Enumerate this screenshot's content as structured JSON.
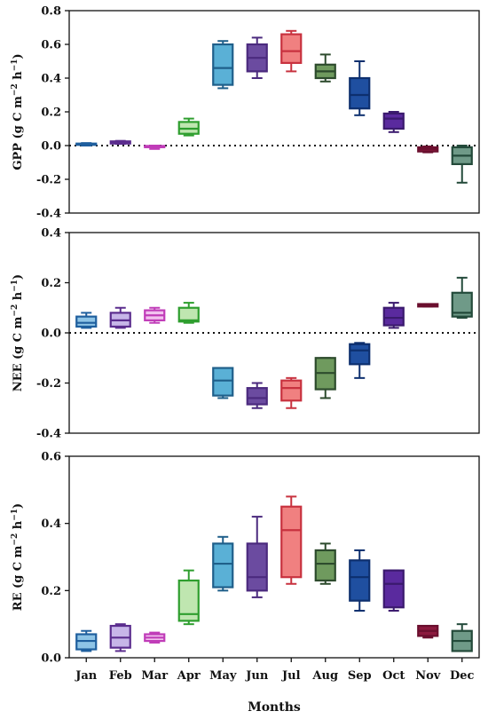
{
  "chart_data": {
    "type": "box",
    "categories": [
      "Jan",
      "Feb",
      "Mar",
      "Apr",
      "May",
      "Jun",
      "Jul",
      "Aug",
      "Sep",
      "Oct",
      "Nov",
      "Dec"
    ],
    "xlabel": "Months",
    "colors": {
      "edge": [
        "#1f5f9e",
        "#5b2d8e",
        "#c03cb8",
        "#2e9e2e",
        "#1f5f8a",
        "#4b2a7e",
        "#c8323f",
        "#2d4b2d",
        "#0d2f6e",
        "#3b1a6e",
        "#6a0f2e",
        "#234a3a"
      ],
      "fill": [
        "#8ec4e6",
        "#c7b6e8",
        "#f2c2ef",
        "#bfe6b0",
        "#5ab0d6",
        "#6b4ba0",
        "#f08080",
        "#6f9a5e",
        "#1f4fa0",
        "#5a2a9e",
        "#8c1a3e",
        "#6f9a88"
      ]
    },
    "panels": [
      {
        "ylabel_main": "GPP",
        "ylabel_unit": "(g C m",
        "ylabel_sup1": "−2",
        "ylabel_unit2": " h",
        "ylabel_sup2": "−1",
        "ylabel_close": ")",
        "ylim": [
          -0.4,
          0.8
        ],
        "yticks": [
          "-0.4",
          "-0.2",
          "0.0",
          "0.2",
          "0.4",
          "0.6",
          "0.8"
        ],
        "zero_line": true,
        "boxes": [
          {
            "min": 0.0,
            "q1": 0.005,
            "median": 0.008,
            "q3": 0.012,
            "max": 0.015
          },
          {
            "min": 0.01,
            "q1": 0.012,
            "median": 0.02,
            "q3": 0.025,
            "max": 0.028
          },
          {
            "min": -0.02,
            "q1": -0.008,
            "median": -0.005,
            "q3": -0.002,
            "max": 0.0
          },
          {
            "min": 0.06,
            "q1": 0.07,
            "median": 0.1,
            "q3": 0.14,
            "max": 0.16
          },
          {
            "min": 0.34,
            "q1": 0.36,
            "median": 0.46,
            "q3": 0.6,
            "max": 0.62
          },
          {
            "min": 0.4,
            "q1": 0.44,
            "median": 0.52,
            "q3": 0.6,
            "max": 0.64
          },
          {
            "min": 0.44,
            "q1": 0.49,
            "median": 0.56,
            "q3": 0.66,
            "max": 0.68
          },
          {
            "min": 0.38,
            "q1": 0.4,
            "median": 0.44,
            "q3": 0.48,
            "max": 0.54
          },
          {
            "min": 0.18,
            "q1": 0.22,
            "median": 0.3,
            "q3": 0.4,
            "max": 0.5
          },
          {
            "min": 0.08,
            "q1": 0.1,
            "median": 0.16,
            "q3": 0.19,
            "max": 0.2
          },
          {
            "min": -0.04,
            "q1": -0.035,
            "median": -0.02,
            "q3": -0.01,
            "max": -0.005
          },
          {
            "min": -0.22,
            "q1": -0.11,
            "median": -0.06,
            "q3": -0.01,
            "max": 0.0
          }
        ]
      },
      {
        "ylabel_main": "NEE",
        "ylabel_unit": "(g C m",
        "ylabel_sup1": "−2",
        "ylabel_unit2": " h",
        "ylabel_sup2": "−1",
        "ylabel_close": ")",
        "ylim": [
          -0.4,
          0.4
        ],
        "yticks": [
          "-0.4",
          "-0.2",
          "0.0",
          "0.2",
          "0.4"
        ],
        "zero_line": true,
        "boxes": [
          {
            "min": 0.02,
            "q1": 0.025,
            "median": 0.04,
            "q3": 0.065,
            "max": 0.08
          },
          {
            "min": 0.02,
            "q1": 0.025,
            "median": 0.05,
            "q3": 0.08,
            "max": 0.1
          },
          {
            "min": 0.04,
            "q1": 0.05,
            "median": 0.07,
            "q3": 0.09,
            "max": 0.1
          },
          {
            "min": 0.04,
            "q1": 0.045,
            "median": 0.05,
            "q3": 0.1,
            "max": 0.12
          },
          {
            "min": -0.26,
            "q1": -0.25,
            "median": -0.19,
            "q3": -0.14,
            "max": -0.14
          },
          {
            "min": -0.3,
            "q1": -0.285,
            "median": -0.26,
            "q3": -0.22,
            "max": -0.2
          },
          {
            "min": -0.3,
            "q1": -0.27,
            "median": -0.22,
            "q3": -0.19,
            "max": -0.18
          },
          {
            "min": -0.26,
            "q1": -0.225,
            "median": -0.16,
            "q3": -0.1,
            "max": -0.1
          },
          {
            "min": -0.18,
            "q1": -0.125,
            "median": -0.07,
            "q3": -0.045,
            "max": -0.04
          },
          {
            "min": 0.02,
            "q1": 0.03,
            "median": 0.06,
            "q3": 0.1,
            "max": 0.12
          },
          {
            "min": 0.105,
            "q1": 0.105,
            "median": 0.11,
            "q3": 0.115,
            "max": 0.115
          },
          {
            "min": 0.06,
            "q1": 0.065,
            "median": 0.08,
            "q3": 0.16,
            "max": 0.22
          }
        ]
      },
      {
        "ylabel_main": "RE",
        "ylabel_unit": "(g C m",
        "ylabel_sup1": "−2",
        "ylabel_unit2": " h",
        "ylabel_sup2": "−1",
        "ylabel_close": ")",
        "ylim": [
          0.0,
          0.6
        ],
        "yticks": [
          "0.0",
          "0.2",
          "0.4",
          "0.6"
        ],
        "zero_line": false,
        "boxes": [
          {
            "min": 0.02,
            "q1": 0.025,
            "median": 0.05,
            "q3": 0.07,
            "max": 0.08
          },
          {
            "min": 0.02,
            "q1": 0.03,
            "median": 0.06,
            "q3": 0.095,
            "max": 0.1
          },
          {
            "min": 0.045,
            "q1": 0.05,
            "median": 0.06,
            "q3": 0.07,
            "max": 0.075
          },
          {
            "min": 0.1,
            "q1": 0.11,
            "median": 0.13,
            "q3": 0.23,
            "max": 0.26
          },
          {
            "min": 0.2,
            "q1": 0.21,
            "median": 0.28,
            "q3": 0.34,
            "max": 0.36
          },
          {
            "min": 0.18,
            "q1": 0.2,
            "median": 0.24,
            "q3": 0.34,
            "max": 0.42
          },
          {
            "min": 0.22,
            "q1": 0.24,
            "median": 0.38,
            "q3": 0.45,
            "max": 0.48
          },
          {
            "min": 0.22,
            "q1": 0.23,
            "median": 0.28,
            "q3": 0.32,
            "max": 0.34
          },
          {
            "min": 0.14,
            "q1": 0.17,
            "median": 0.24,
            "q3": 0.29,
            "max": 0.32
          },
          {
            "min": 0.14,
            "q1": 0.15,
            "median": 0.22,
            "q3": 0.26,
            "max": 0.26
          },
          {
            "min": 0.06,
            "q1": 0.065,
            "median": 0.08,
            "q3": 0.095,
            "max": 0.095
          },
          {
            "min": 0.02,
            "q1": 0.02,
            "median": 0.05,
            "q3": 0.08,
            "max": 0.1
          }
        ]
      }
    ]
  }
}
